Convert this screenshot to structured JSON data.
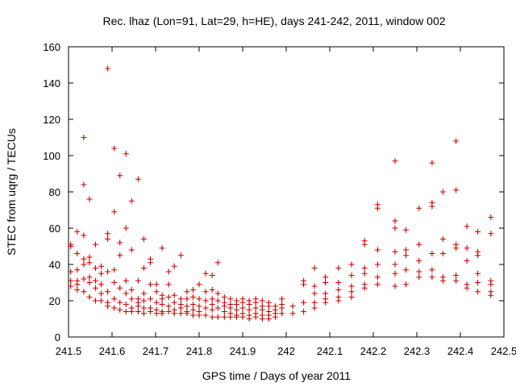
{
  "chart_data": {
    "type": "scatter",
    "title": "Rec. lhaz (Lon=91, Lat=29, h=HE), days 241-242, 2011, window 002",
    "xlabel": "GPS time / Days of year 2011",
    "ylabel": "STEC from uqrg / TECUs",
    "xlim": [
      241.5,
      242.5
    ],
    "ylim": [
      0,
      160
    ],
    "xticks": [
      "241.5",
      "241.6",
      "241.7",
      "241.8",
      "241.9",
      "242",
      "242.1",
      "242.2",
      "242.3",
      "242.4",
      "242.5"
    ],
    "yticks": [
      "0",
      "20",
      "40",
      "60",
      "80",
      "100",
      "120",
      "140",
      "160"
    ],
    "grid": false,
    "marker": "+",
    "color": "#cc0000",
    "series": [
      {
        "points": [
          [
            241.505,
            51
          ],
          [
            241.505,
            50
          ],
          [
            241.505,
            36
          ],
          [
            241.505,
            31
          ],
          [
            241.505,
            28
          ],
          [
            241.52,
            58
          ],
          [
            241.52,
            46
          ],
          [
            241.52,
            37
          ],
          [
            241.52,
            31
          ],
          [
            241.52,
            29
          ],
          [
            241.52,
            26
          ],
          [
            241.535,
            110
          ],
          [
            241.535,
            84
          ],
          [
            241.535,
            56
          ],
          [
            241.535,
            43
          ],
          [
            241.535,
            40
          ],
          [
            241.535,
            32
          ],
          [
            241.535,
            25
          ],
          [
            241.548,
            76
          ],
          [
            241.548,
            44
          ],
          [
            241.548,
            41
          ],
          [
            241.548,
            33
          ],
          [
            241.548,
            30
          ],
          [
            241.548,
            22
          ],
          [
            241.562,
            51
          ],
          [
            241.562,
            38
          ],
          [
            241.562,
            31
          ],
          [
            241.562,
            27
          ],
          [
            241.562,
            20
          ],
          [
            241.575,
            39
          ],
          [
            241.575,
            35
          ],
          [
            241.575,
            29
          ],
          [
            241.575,
            24
          ],
          [
            241.575,
            20
          ],
          [
            241.59,
            148
          ],
          [
            241.59,
            57
          ],
          [
            241.59,
            54
          ],
          [
            241.59,
            36
          ],
          [
            241.59,
            25
          ],
          [
            241.59,
            19
          ],
          [
            241.59,
            17
          ],
          [
            241.605,
            104
          ],
          [
            241.605,
            69
          ],
          [
            241.605,
            37
          ],
          [
            241.605,
            30
          ],
          [
            241.605,
            21
          ],
          [
            241.605,
            16
          ],
          [
            241.618,
            89
          ],
          [
            241.618,
            52
          ],
          [
            241.618,
            45
          ],
          [
            241.618,
            27
          ],
          [
            241.618,
            19
          ],
          [
            241.618,
            15
          ],
          [
            241.632,
            101
          ],
          [
            241.632,
            60
          ],
          [
            241.632,
            31
          ],
          [
            241.632,
            24
          ],
          [
            241.632,
            18
          ],
          [
            241.632,
            14
          ],
          [
            241.645,
            75
          ],
          [
            241.645,
            48
          ],
          [
            241.645,
            26
          ],
          [
            241.645,
            21
          ],
          [
            241.645,
            16
          ],
          [
            241.645,
            14
          ],
          [
            241.66,
            87
          ],
          [
            241.66,
            31
          ],
          [
            241.66,
            21
          ],
          [
            241.66,
            19
          ],
          [
            241.66,
            17
          ],
          [
            241.66,
            14
          ],
          [
            241.673,
            54
          ],
          [
            241.673,
            38
          ],
          [
            241.673,
            24
          ],
          [
            241.673,
            20
          ],
          [
            241.673,
            16
          ],
          [
            241.673,
            13
          ],
          [
            241.688,
            43
          ],
          [
            241.688,
            41
          ],
          [
            241.688,
            29
          ],
          [
            241.688,
            21
          ],
          [
            241.688,
            16
          ],
          [
            241.688,
            14
          ],
          [
            241.702,
            29
          ],
          [
            241.702,
            25
          ],
          [
            241.702,
            19
          ],
          [
            241.702,
            15
          ],
          [
            241.702,
            13
          ],
          [
            241.715,
            49
          ],
          [
            241.715,
            23
          ],
          [
            241.715,
            21
          ],
          [
            241.715,
            18
          ],
          [
            241.715,
            14
          ],
          [
            241.715,
            13
          ],
          [
            241.73,
            36
          ],
          [
            241.73,
            29
          ],
          [
            241.73,
            22
          ],
          [
            241.73,
            17
          ],
          [
            241.73,
            14
          ],
          [
            241.743,
            39
          ],
          [
            241.743,
            23
          ],
          [
            241.743,
            19
          ],
          [
            241.743,
            15
          ],
          [
            241.743,
            13
          ],
          [
            241.758,
            45
          ],
          [
            241.758,
            21
          ],
          [
            241.758,
            18
          ],
          [
            241.758,
            16
          ],
          [
            241.758,
            13
          ],
          [
            241.772,
            25
          ],
          [
            241.772,
            21
          ],
          [
            241.772,
            17
          ],
          [
            241.772,
            14
          ],
          [
            241.772,
            13
          ],
          [
            241.786,
            26
          ],
          [
            241.786,
            22
          ],
          [
            241.786,
            18
          ],
          [
            241.786,
            15
          ],
          [
            241.786,
            12
          ],
          [
            241.8,
            29
          ],
          [
            241.8,
            21
          ],
          [
            241.8,
            17
          ],
          [
            241.8,
            14
          ],
          [
            241.8,
            12
          ],
          [
            241.815,
            35
          ],
          [
            241.815,
            25
          ],
          [
            241.815,
            20
          ],
          [
            241.815,
            16
          ],
          [
            241.815,
            12
          ],
          [
            241.83,
            34
          ],
          [
            241.83,
            26
          ],
          [
            241.83,
            21
          ],
          [
            241.83,
            18
          ],
          [
            241.83,
            15
          ],
          [
            241.83,
            11
          ],
          [
            241.843,
            41
          ],
          [
            241.843,
            24
          ],
          [
            241.843,
            20
          ],
          [
            241.843,
            16
          ],
          [
            241.843,
            11
          ],
          [
            241.858,
            22
          ],
          [
            241.858,
            19
          ],
          [
            241.858,
            17
          ],
          [
            241.858,
            14
          ],
          [
            241.858,
            11
          ],
          [
            241.872,
            21
          ],
          [
            241.872,
            18
          ],
          [
            241.872,
            16
          ],
          [
            241.872,
            13
          ],
          [
            241.872,
            11
          ],
          [
            241.886,
            20
          ],
          [
            241.886,
            18
          ],
          [
            241.886,
            15
          ],
          [
            241.886,
            12
          ],
          [
            241.886,
            11
          ],
          [
            241.9,
            21
          ],
          [
            241.9,
            19
          ],
          [
            241.9,
            16
          ],
          [
            241.9,
            13
          ],
          [
            241.9,
            11
          ],
          [
            241.915,
            20
          ],
          [
            241.915,
            18
          ],
          [
            241.915,
            15
          ],
          [
            241.915,
            12
          ],
          [
            241.915,
            10
          ],
          [
            241.93,
            21
          ],
          [
            241.93,
            19
          ],
          [
            241.93,
            16
          ],
          [
            241.93,
            13
          ],
          [
            241.93,
            11
          ],
          [
            241.945,
            20
          ],
          [
            241.945,
            17
          ],
          [
            241.945,
            15
          ],
          [
            241.945,
            12
          ],
          [
            241.945,
            10
          ],
          [
            241.96,
            19
          ],
          [
            241.96,
            17
          ],
          [
            241.96,
            14
          ],
          [
            241.96,
            12
          ],
          [
            241.96,
            10
          ],
          [
            241.975,
            17
          ],
          [
            241.975,
            15
          ],
          [
            241.975,
            13
          ],
          [
            241.975,
            11
          ],
          [
            241.99,
            21
          ],
          [
            241.99,
            18
          ],
          [
            241.99,
            16
          ],
          [
            241.99,
            13
          ],
          [
            242.015,
            17
          ],
          [
            242.015,
            13
          ],
          [
            242.04,
            31
          ],
          [
            242.04,
            29
          ],
          [
            242.04,
            19
          ],
          [
            242.04,
            14
          ],
          [
            242.065,
            38
          ],
          [
            242.065,
            28
          ],
          [
            242.065,
            24
          ],
          [
            242.065,
            19
          ],
          [
            242.065,
            16
          ],
          [
            242.09,
            33
          ],
          [
            242.09,
            30
          ],
          [
            242.09,
            24
          ],
          [
            242.09,
            21
          ],
          [
            242.09,
            19
          ],
          [
            242.12,
            38
          ],
          [
            242.12,
            30
          ],
          [
            242.12,
            26
          ],
          [
            242.12,
            22
          ],
          [
            242.12,
            20
          ],
          [
            242.15,
            40
          ],
          [
            242.15,
            34
          ],
          [
            242.15,
            28
          ],
          [
            242.15,
            25
          ],
          [
            242.15,
            22
          ],
          [
            242.18,
            53
          ],
          [
            242.18,
            51
          ],
          [
            242.18,
            38
          ],
          [
            242.18,
            35
          ],
          [
            242.18,
            29
          ],
          [
            242.18,
            27
          ],
          [
            242.21,
            73
          ],
          [
            242.21,
            71
          ],
          [
            242.21,
            48
          ],
          [
            242.21,
            40
          ],
          [
            242.21,
            33
          ],
          [
            242.21,
            29
          ],
          [
            242.25,
            97
          ],
          [
            242.25,
            64
          ],
          [
            242.25,
            60
          ],
          [
            242.25,
            47
          ],
          [
            242.25,
            40
          ],
          [
            242.25,
            35
          ],
          [
            242.25,
            28
          ],
          [
            242.275,
            59
          ],
          [
            242.275,
            48
          ],
          [
            242.275,
            45
          ],
          [
            242.275,
            37
          ],
          [
            242.275,
            29
          ],
          [
            242.305,
            71
          ],
          [
            242.305,
            51
          ],
          [
            242.305,
            42
          ],
          [
            242.305,
            36
          ],
          [
            242.305,
            33
          ],
          [
            242.335,
            96
          ],
          [
            242.335,
            74
          ],
          [
            242.335,
            72
          ],
          [
            242.335,
            46
          ],
          [
            242.335,
            37
          ],
          [
            242.335,
            33
          ],
          [
            242.36,
            80
          ],
          [
            242.36,
            54
          ],
          [
            242.36,
            46
          ],
          [
            242.36,
            33
          ],
          [
            242.36,
            31
          ],
          [
            242.39,
            108
          ],
          [
            242.39,
            81
          ],
          [
            242.39,
            51
          ],
          [
            242.39,
            49
          ],
          [
            242.39,
            34
          ],
          [
            242.39,
            31
          ],
          [
            242.415,
            61
          ],
          [
            242.415,
            49
          ],
          [
            242.415,
            42
          ],
          [
            242.415,
            29
          ],
          [
            242.415,
            27
          ],
          [
            242.44,
            58
          ],
          [
            242.44,
            47
          ],
          [
            242.44,
            45
          ],
          [
            242.44,
            35
          ],
          [
            242.44,
            30
          ],
          [
            242.44,
            25
          ],
          [
            242.47,
            66
          ],
          [
            242.47,
            57
          ],
          [
            242.47,
            31
          ],
          [
            242.47,
            29
          ],
          [
            242.47,
            25
          ],
          [
            242.47,
            23
          ]
        ]
      }
    ]
  }
}
